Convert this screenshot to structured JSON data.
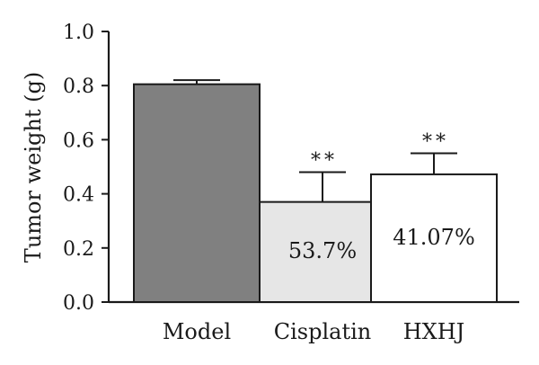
{
  "chart_data": {
    "type": "bar",
    "title": "",
    "xlabel": "",
    "ylabel": "Tumor weight (g)",
    "ylim": [
      0,
      1.0
    ],
    "yticks": [
      "0.0",
      "0.2",
      "0.4",
      "0.6",
      "0.8",
      "1.0"
    ],
    "grid": false,
    "categories": [
      "Model",
      "Cisplatin",
      "HXHJ"
    ],
    "values": [
      0.805,
      0.37,
      0.472
    ],
    "error_upper": [
      0.015,
      0.11,
      0.078
    ],
    "bar_labels": [
      "",
      "53.7%",
      "41.07%"
    ],
    "significance": [
      "",
      "**",
      "**"
    ],
    "colors": {
      "bars": [
        "#808080",
        "#e6e6e6",
        "#ffffff"
      ],
      "stroke": "#1a1a1a"
    }
  }
}
